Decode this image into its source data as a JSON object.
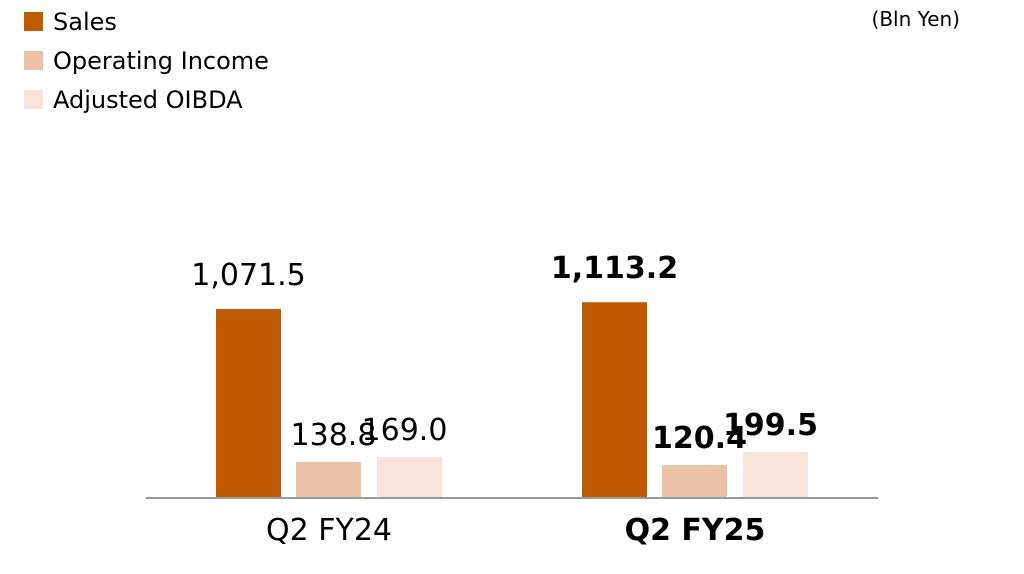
{
  "chart_data": {
    "type": "bar",
    "unit_label": "(Bln Yen)",
    "categories": [
      "Q2 FY24",
      "Q2 FY25"
    ],
    "category_bold": [
      false,
      true
    ],
    "series": [
      {
        "name": "Sales",
        "color": "#BF5A00",
        "values": [
          1071.5,
          1113.2
        ],
        "labels": [
          "1,071.5",
          "1,113.2"
        ]
      },
      {
        "name": "Operating Income",
        "color": "#EBC2A5",
        "values": [
          138.8,
          120.4
        ],
        "labels": [
          "138.8",
          "120.4"
        ]
      },
      {
        "name": "Adjusted OIBDA",
        "color": "#F7E3D9",
        "values": [
          169.0,
          199.5
        ],
        "labels": [
          "169.0",
          "199.5"
        ]
      }
    ],
    "legend_position": "top-left",
    "grid": false
  }
}
